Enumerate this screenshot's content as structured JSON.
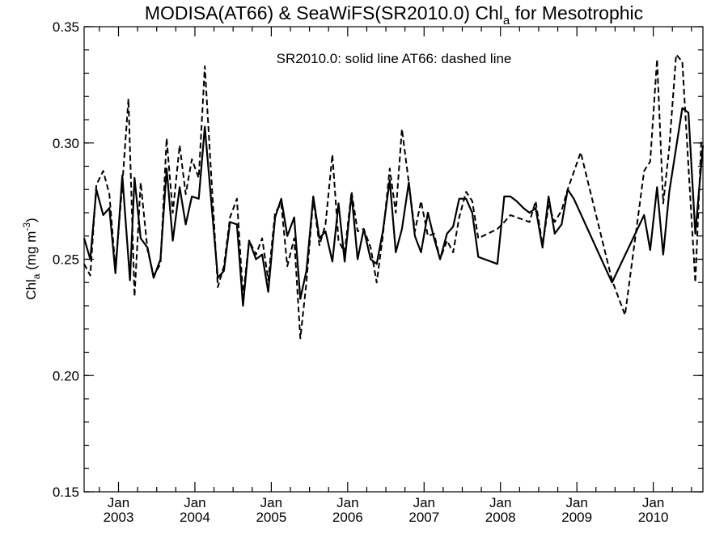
{
  "chart_data": {
    "type": "line",
    "title": {
      "main": "MODISA(AT66) & SeaWiFS(SR2010.0)  Chl",
      "sub": "a",
      "tail": " for Mesotrophic"
    },
    "annotation": "SR2010.0: solid line   AT66: dashed line",
    "ylabel": {
      "main": "Chl",
      "sub": "a",
      "unit_prefix": " (mg m",
      "unit_sup": "-3",
      "unit_suffix": ")"
    },
    "ylim": [
      0.15,
      0.35
    ],
    "yticks": [
      "0.15",
      "0.20",
      "0.25",
      "0.30",
      "0.35"
    ],
    "xlim": [
      2002.55,
      2010.65
    ],
    "xticks": [
      {
        "month": "Jan",
        "year": "2003",
        "x": 2003.0
      },
      {
        "month": "Jan",
        "year": "2004",
        "x": 2004.0
      },
      {
        "month": "Jan",
        "year": "2005",
        "x": 2005.0
      },
      {
        "month": "Jan",
        "year": "2006",
        "x": 2006.0
      },
      {
        "month": "Jan",
        "year": "2007",
        "x": 2007.0
      },
      {
        "month": "Jan",
        "year": "2008",
        "x": 2008.0
      },
      {
        "month": "Jan",
        "year": "2009",
        "x": 2009.0
      },
      {
        "month": "Jan",
        "year": "2010",
        "x": 2010.0
      }
    ],
    "series": [
      {
        "style": "solid",
        "points": [
          [
            2002.55,
            0.259
          ],
          [
            2002.63,
            0.25
          ],
          [
            2002.71,
            0.28
          ],
          [
            2002.8,
            0.269
          ],
          [
            2002.88,
            0.272
          ],
          [
            2002.96,
            0.244
          ],
          [
            2003.05,
            0.286
          ],
          [
            2003.15,
            0.241
          ],
          [
            2003.21,
            0.285
          ],
          [
            2003.29,
            0.259
          ],
          [
            2003.38,
            0.255
          ],
          [
            2003.46,
            0.242
          ],
          [
            2003.55,
            0.25
          ],
          [
            2003.63,
            0.289
          ],
          [
            2003.71,
            0.258
          ],
          [
            2003.8,
            0.281
          ],
          [
            2003.88,
            0.265
          ],
          [
            2003.96,
            0.277
          ],
          [
            2004.05,
            0.276
          ],
          [
            2004.13,
            0.307
          ],
          [
            2004.3,
            0.242
          ],
          [
            2004.38,
            0.245
          ],
          [
            2004.46,
            0.266
          ],
          [
            2004.55,
            0.265
          ],
          [
            2004.63,
            0.23
          ],
          [
            2004.71,
            0.258
          ],
          [
            2004.8,
            0.25
          ],
          [
            2004.88,
            0.252
          ],
          [
            2004.96,
            0.236
          ],
          [
            2005.05,
            0.268
          ],
          [
            2005.13,
            0.276
          ],
          [
            2005.21,
            0.26
          ],
          [
            2005.3,
            0.268
          ],
          [
            2005.38,
            0.233
          ],
          [
            2005.46,
            0.245
          ],
          [
            2005.55,
            0.277
          ],
          [
            2005.63,
            0.259
          ],
          [
            2005.71,
            0.262
          ],
          [
            2005.8,
            0.249
          ],
          [
            2005.88,
            0.274
          ],
          [
            2005.96,
            0.249
          ],
          [
            2006.05,
            0.278
          ],
          [
            2006.13,
            0.25
          ],
          [
            2006.21,
            0.263
          ],
          [
            2006.3,
            0.25
          ],
          [
            2006.38,
            0.248
          ],
          [
            2006.46,
            0.262
          ],
          [
            2006.55,
            0.284
          ],
          [
            2006.63,
            0.253
          ],
          [
            2006.71,
            0.263
          ],
          [
            2006.8,
            0.283
          ],
          [
            2006.88,
            0.26
          ],
          [
            2006.96,
            0.253
          ],
          [
            2007.05,
            0.27
          ],
          [
            2007.13,
            0.259
          ],
          [
            2007.21,
            0.25
          ],
          [
            2007.3,
            0.261
          ],
          [
            2007.38,
            0.264
          ],
          [
            2007.46,
            0.276
          ],
          [
            2007.55,
            0.276
          ],
          [
            2007.63,
            0.27
          ],
          [
            2007.71,
            0.251
          ],
          [
            2007.96,
            0.248
          ],
          [
            2008.05,
            0.277
          ],
          [
            2008.13,
            0.277
          ],
          [
            2008.21,
            0.275
          ],
          [
            2008.3,
            0.272
          ],
          [
            2008.38,
            0.27
          ],
          [
            2008.46,
            0.272
          ],
          [
            2008.55,
            0.255
          ],
          [
            2008.63,
            0.277
          ],
          [
            2008.71,
            0.261
          ],
          [
            2008.8,
            0.265
          ],
          [
            2008.88,
            0.28
          ],
          [
            2008.96,
            0.276
          ],
          [
            2009.46,
            0.24
          ],
          [
            2009.88,
            0.269
          ],
          [
            2009.96,
            0.254
          ],
          [
            2010.05,
            0.281
          ],
          [
            2010.13,
            0.252
          ],
          [
            2010.21,
            0.279
          ],
          [
            2010.38,
            0.315
          ],
          [
            2010.46,
            0.313
          ],
          [
            2010.55,
            0.261
          ],
          [
            2010.65,
            0.299
          ]
        ]
      },
      {
        "style": "dashed",
        "points": [
          [
            2002.55,
            0.248
          ],
          [
            2002.63,
            0.243
          ],
          [
            2002.71,
            0.282
          ],
          [
            2002.8,
            0.288
          ],
          [
            2002.88,
            0.278
          ],
          [
            2002.96,
            0.246
          ],
          [
            2003.05,
            0.282
          ],
          [
            2003.13,
            0.319
          ],
          [
            2003.21,
            0.234
          ],
          [
            2003.29,
            0.283
          ],
          [
            2003.38,
            0.254
          ],
          [
            2003.46,
            0.243
          ],
          [
            2003.55,
            0.248
          ],
          [
            2003.63,
            0.302
          ],
          [
            2003.71,
            0.27
          ],
          [
            2003.8,
            0.299
          ],
          [
            2003.88,
            0.278
          ],
          [
            2003.96,
            0.293
          ],
          [
            2004.05,
            0.285
          ],
          [
            2004.13,
            0.333
          ],
          [
            2004.3,
            0.238
          ],
          [
            2004.38,
            0.247
          ],
          [
            2004.46,
            0.268
          ],
          [
            2004.55,
            0.276
          ],
          [
            2004.63,
            0.234
          ],
          [
            2004.71,
            0.258
          ],
          [
            2004.8,
            0.252
          ],
          [
            2004.88,
            0.259
          ],
          [
            2004.96,
            0.241
          ],
          [
            2005.05,
            0.27
          ],
          [
            2005.13,
            0.274
          ],
          [
            2005.21,
            0.247
          ],
          [
            2005.3,
            0.259
          ],
          [
            2005.38,
            0.216
          ],
          [
            2005.46,
            0.24
          ],
          [
            2005.55,
            0.276
          ],
          [
            2005.63,
            0.256
          ],
          [
            2005.71,
            0.265
          ],
          [
            2005.8,
            0.295
          ],
          [
            2005.88,
            0.258
          ],
          [
            2005.96,
            0.253
          ],
          [
            2006.05,
            0.279
          ],
          [
            2006.13,
            0.262
          ],
          [
            2006.21,
            0.263
          ],
          [
            2006.3,
            0.255
          ],
          [
            2006.38,
            0.24
          ],
          [
            2006.46,
            0.26
          ],
          [
            2006.55,
            0.289
          ],
          [
            2006.63,
            0.27
          ],
          [
            2006.71,
            0.306
          ],
          [
            2006.8,
            0.283
          ],
          [
            2006.88,
            0.262
          ],
          [
            2006.96,
            0.275
          ],
          [
            2007.05,
            0.26
          ],
          [
            2007.13,
            0.261
          ],
          [
            2007.21,
            0.25
          ],
          [
            2007.3,
            0.258
          ],
          [
            2007.38,
            0.253
          ],
          [
            2007.46,
            0.268
          ],
          [
            2007.55,
            0.279
          ],
          [
            2007.63,
            0.275
          ],
          [
            2007.71,
            0.259
          ],
          [
            2007.96,
            0.263
          ],
          [
            2008.05,
            0.266
          ],
          [
            2008.13,
            0.269
          ],
          [
            2008.21,
            0.268
          ],
          [
            2008.3,
            0.267
          ],
          [
            2008.38,
            0.266
          ],
          [
            2008.46,
            0.275
          ],
          [
            2008.55,
            0.256
          ],
          [
            2008.63,
            0.273
          ],
          [
            2008.71,
            0.266
          ],
          [
            2008.8,
            0.271
          ],
          [
            2008.88,
            0.28
          ],
          [
            2009.05,
            0.296
          ],
          [
            2009.46,
            0.241
          ],
          [
            2009.63,
            0.226
          ],
          [
            2009.88,
            0.288
          ],
          [
            2009.96,
            0.292
          ],
          [
            2010.05,
            0.336
          ],
          [
            2010.13,
            0.274
          ],
          [
            2010.21,
            0.298
          ],
          [
            2010.3,
            0.338
          ],
          [
            2010.38,
            0.335
          ],
          [
            2010.46,
            0.29
          ],
          [
            2010.55,
            0.24
          ],
          [
            2010.63,
            0.302
          ]
        ]
      }
    ],
    "grid": false,
    "legend": "none"
  }
}
